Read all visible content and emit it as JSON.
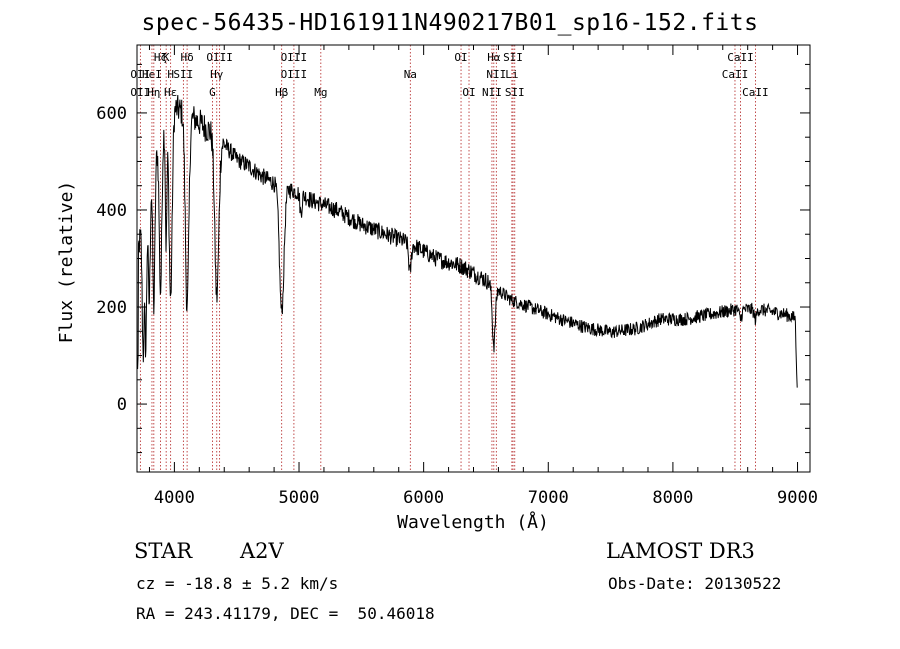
{
  "chart_data": {
    "type": "line",
    "title": "spec-56435-HD161911N490217B01_sp16-152.fits",
    "xlabel": "Wavelength (Å)",
    "ylabel": "Flux (relative)",
    "xlim": [
      3700,
      9100
    ],
    "ylim": [
      -140,
      740
    ],
    "xticks": [
      4000,
      5000,
      6000,
      7000,
      8000,
      9000
    ],
    "yticks": [
      0,
      200,
      400,
      600
    ],
    "continuum": [
      [
        3700,
        300
      ],
      [
        3800,
        470
      ],
      [
        3900,
        560
      ],
      [
        4000,
        610
      ],
      [
        4100,
        600
      ],
      [
        4200,
        580
      ],
      [
        4300,
        560
      ],
      [
        4400,
        535
      ],
      [
        4500,
        505
      ],
      [
        4600,
        490
      ],
      [
        4700,
        470
      ],
      [
        4800,
        455
      ],
      [
        4900,
        445
      ],
      [
        5000,
        435
      ],
      [
        5100,
        420
      ],
      [
        5300,
        400
      ],
      [
        5500,
        370
      ],
      [
        5700,
        350
      ],
      [
        5900,
        330
      ],
      [
        6100,
        300
      ],
      [
        6300,
        285
      ],
      [
        6500,
        255
      ],
      [
        6700,
        215
      ],
      [
        6900,
        195
      ],
      [
        7100,
        175
      ],
      [
        7300,
        158
      ],
      [
        7500,
        148
      ],
      [
        7700,
        155
      ],
      [
        7900,
        175
      ],
      [
        8100,
        175
      ],
      [
        8300,
        185
      ],
      [
        8500,
        195
      ],
      [
        8700,
        195
      ],
      [
        8900,
        185
      ],
      [
        9000,
        175
      ]
    ],
    "absorption_lines": [
      {
        "center": 3750,
        "depth": 280,
        "width": 8
      },
      {
        "center": 3771,
        "depth": 300,
        "width": 7
      },
      {
        "center": 3798,
        "depth": 260,
        "width": 8
      },
      {
        "center": 3835,
        "depth": 300,
        "width": 9
      },
      {
        "center": 3889,
        "depth": 320,
        "width": 10
      },
      {
        "center": 3934,
        "depth": 250,
        "width": 6
      },
      {
        "center": 3970,
        "depth": 380,
        "width": 12
      },
      {
        "center": 4102,
        "depth": 400,
        "width": 14
      },
      {
        "center": 4340,
        "depth": 330,
        "width": 16
      },
      {
        "center": 4861,
        "depth": 260,
        "width": 18
      },
      {
        "center": 5015,
        "depth": 40,
        "width": 8
      },
      {
        "center": 5890,
        "depth": 60,
        "width": 10
      },
      {
        "center": 6563,
        "depth": 120,
        "width": 12
      },
      {
        "center": 8542,
        "depth": 20,
        "width": 10
      },
      {
        "center": 8662,
        "depth": 20,
        "width": 10
      }
    ],
    "spectral_lines": [
      {
        "label": "Hζ",
        "wavelength": 3889,
        "row": 0
      },
      {
        "label": "K",
        "wavelength": 3934,
        "row": 0
      },
      {
        "label": "Hδ",
        "wavelength": 4102,
        "row": 0
      },
      {
        "label": "OIII",
        "wavelength": 4363,
        "row": 0
      },
      {
        "label": "OIII",
        "wavelength": 4959,
        "row": 0
      },
      {
        "label": "OI",
        "wavelength": 6300,
        "row": 0
      },
      {
        "label": "Hα",
        "wavelength": 6563,
        "row": 0
      },
      {
        "label": "SII",
        "wavelength": 6717,
        "row": 0
      },
      {
        "label": "CaII",
        "wavelength": 8542,
        "row": 0
      },
      {
        "label": "OII",
        "wavelength": 3727,
        "row": 1
      },
      {
        "label": "HeI",
        "wavelength": 3820,
        "row": 1
      },
      {
        "label": "H",
        "wavelength": 3970,
        "row": 1
      },
      {
        "label": "SII",
        "wavelength": 4072,
        "row": 1
      },
      {
        "label": "Hγ",
        "wavelength": 4340,
        "row": 1
      },
      {
        "label": "OIII",
        "wavelength": 4959,
        "row": 1
      },
      {
        "label": "Na",
        "wavelength": 5893,
        "row": 1
      },
      {
        "label": "NII",
        "wavelength": 6583,
        "row": 1
      },
      {
        "label": "Li",
        "wavelength": 6708,
        "row": 1
      },
      {
        "label": "CaII",
        "wavelength": 8498,
        "row": 1
      },
      {
        "label": "OII",
        "wavelength": 3727,
        "row": 2
      },
      {
        "label": "Hη",
        "wavelength": 3835,
        "row": 2
      },
      {
        "label": "Hε",
        "wavelength": 3970,
        "row": 2
      },
      {
        "label": "G",
        "wavelength": 4305,
        "row": 2
      },
      {
        "label": "Hβ",
        "wavelength": 4861,
        "row": 2
      },
      {
        "label": "Mg",
        "wavelength": 5175,
        "row": 2
      },
      {
        "label": "OI",
        "wavelength": 6364,
        "row": 2
      },
      {
        "label": "NII",
        "wavelength": 6548,
        "row": 2
      },
      {
        "label": "SII",
        "wavelength": 6731,
        "row": 2
      },
      {
        "label": "CaII",
        "wavelength": 8662,
        "row": 2
      }
    ]
  },
  "info": {
    "object_type": "STAR",
    "subclass": "A2V",
    "survey": "LAMOST DR3",
    "redshift": "cz = -18.8 ± 5.2 km/s",
    "obs_date": "Obs-Date: 20130522",
    "coords": "RA = 243.41179, DEC =  50.46018"
  },
  "colors": {
    "spectrum": "#000000",
    "line_markers": "#b22222",
    "axes": "#000000"
  }
}
